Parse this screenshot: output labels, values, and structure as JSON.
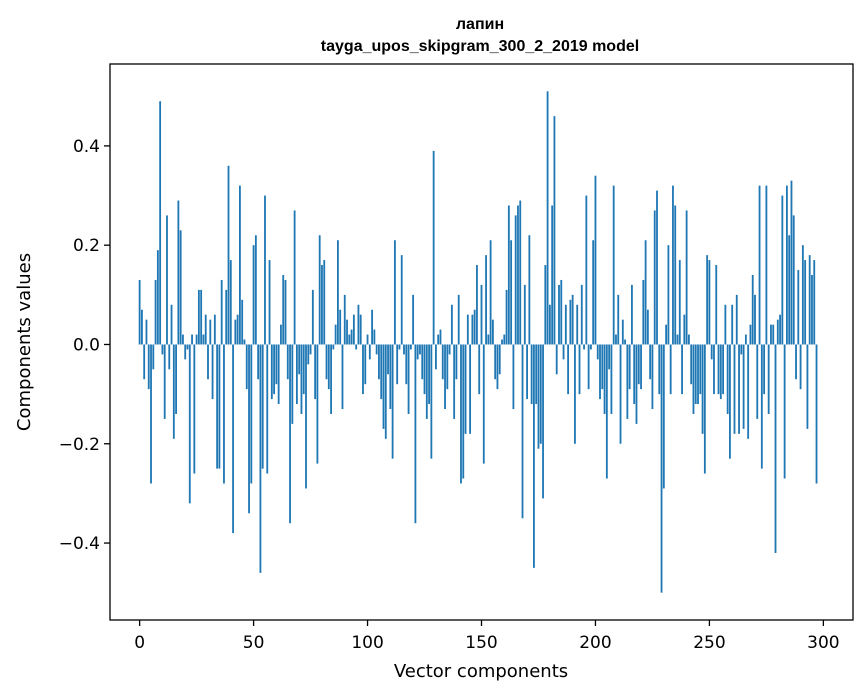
{
  "chart_data": {
    "type": "bar",
    "title": "лапин",
    "subtitle": "tayga_upos_skipgram_300_2_2019 model",
    "xlabel": "Vector components",
    "ylabel": "Components values",
    "xlim": [
      -13,
      313
    ],
    "ylim": [
      -0.555,
      0.565
    ],
    "xticks": [
      0,
      50,
      100,
      150,
      200,
      250,
      300
    ],
    "xtick_labels": [
      "0",
      "50",
      "100",
      "150",
      "200",
      "250",
      "300"
    ],
    "yticks": [
      -0.4,
      -0.2,
      0.0,
      0.2,
      0.4
    ],
    "ytick_labels": [
      "−0.4",
      "−0.2",
      "0.0",
      "0.2",
      "0.4"
    ],
    "bar_color": "#1f77b4",
    "values": [
      0.13,
      0.07,
      -0.07,
      0.05,
      -0.09,
      -0.28,
      -0.05,
      0.13,
      0.19,
      0.49,
      -0.02,
      -0.15,
      0.26,
      -0.05,
      0.08,
      -0.19,
      -0.14,
      0.29,
      0.23,
      0.02,
      -0.03,
      -0.01,
      -0.32,
      0.02,
      -0.26,
      0.02,
      0.11,
      0.11,
      0.02,
      0.06,
      -0.07,
      0.05,
      -0.11,
      0.06,
      -0.25,
      -0.25,
      0.13,
      -0.28,
      0.11,
      0.36,
      0.17,
      -0.38,
      0.05,
      0.06,
      0.32,
      0.09,
      0.01,
      -0.09,
      -0.34,
      -0.28,
      0.2,
      0.22,
      -0.07,
      -0.46,
      -0.25,
      0.3,
      -0.26,
      0.17,
      -0.11,
      -0.1,
      -0.08,
      -0.12,
      0.04,
      0.14,
      0.13,
      -0.07,
      -0.36,
      -0.16,
      0.27,
      -0.12,
      -0.06,
      -0.14,
      -0.1,
      -0.29,
      -0.04,
      -0.02,
      0.11,
      -0.11,
      -0.24,
      0.22,
      0.16,
      0.17,
      -0.07,
      -0.09,
      -0.14,
      -0.01,
      0.04,
      0.21,
      0.07,
      -0.13,
      0.1,
      0.05,
      0.02,
      0.03,
      0.06,
      -0.01,
      0.08,
      0.06,
      -0.1,
      -0.08,
      0.02,
      -0.03,
      0.07,
      0.03,
      -0.02,
      -0.07,
      -0.11,
      -0.17,
      -0.19,
      -0.06,
      -0.13,
      -0.23,
      0.21,
      -0.08,
      -0.01,
      0.18,
      -0.02,
      -0.08,
      -0.14,
      -0.01,
      0.1,
      -0.36,
      -0.03,
      -0.02,
      -0.07,
      -0.1,
      -0.15,
      -0.12,
      -0.23,
      0.39,
      -0.05,
      0.02,
      0.03,
      -0.07,
      -0.13,
      -0.09,
      -0.02,
      0.08,
      -0.15,
      -0.07,
      0.1,
      -0.28,
      -0.27,
      -0.18,
      0.06,
      -0.18,
      0.06,
      0.07,
      0.16,
      -0.1,
      0.12,
      -0.24,
      0.18,
      0.02,
      0.21,
      0.05,
      -0.07,
      -0.09,
      -0.06,
      0.01,
      0.02,
      0.11,
      0.28,
      0.21,
      -0.13,
      0.26,
      0.28,
      0.29,
      -0.35,
      0.12,
      -0.11,
      0.22,
      -0.12,
      -0.45,
      -0.12,
      -0.21,
      -0.2,
      -0.31,
      0.16,
      0.51,
      0.08,
      0.28,
      0.46,
      -0.06,
      0.12,
      0.13,
      -0.03,
      0.08,
      -0.1,
      0.09,
      0.1,
      -0.2,
      0.08,
      -0.1,
      0.12,
      -0.01,
      0.3,
      -0.09,
      -0.01,
      0.21,
      0.34,
      -0.03,
      -0.11,
      -0.09,
      -0.14,
      -0.27,
      -0.05,
      -0.14,
      0.32,
      0.02,
      0.1,
      -0.2,
      0.05,
      0.01,
      -0.15,
      -0.09,
      0.12,
      -0.12,
      -0.16,
      -0.08,
      -0.09,
      0.13,
      0.21,
      0.07,
      -0.07,
      -0.13,
      0.27,
      0.31,
      -0.1,
      -0.5,
      -0.29,
      0.04,
      0.2,
      -0.1,
      0.32,
      0.28,
      0.02,
      0.17,
      -0.1,
      0.06,
      0.27,
      0.02,
      -0.08,
      -0.14,
      -0.12,
      -0.12,
      -0.1,
      -0.18,
      -0.26,
      0.18,
      0.17,
      -0.03,
      -0.1,
      0.16,
      -0.1,
      -0.11,
      -0.1,
      0.08,
      -0.14,
      -0.23,
      0.08,
      -0.18,
      0.1,
      -0.18,
      -0.02,
      -0.17,
      0.02,
      -0.19,
      0.04,
      0.14,
      0.1,
      -0.15,
      0.32,
      -0.25,
      -0.1,
      0.32,
      -0.14,
      0.04,
      0.04,
      -0.42,
      0.05,
      0.06,
      0.3,
      -0.27,
      0.32,
      0.22,
      0.33,
      0.26,
      -0.07,
      0.15,
      -0.09,
      0.2,
      0.17,
      -0.17,
      0.18,
      0.14,
      0.17,
      -0.28
    ]
  }
}
